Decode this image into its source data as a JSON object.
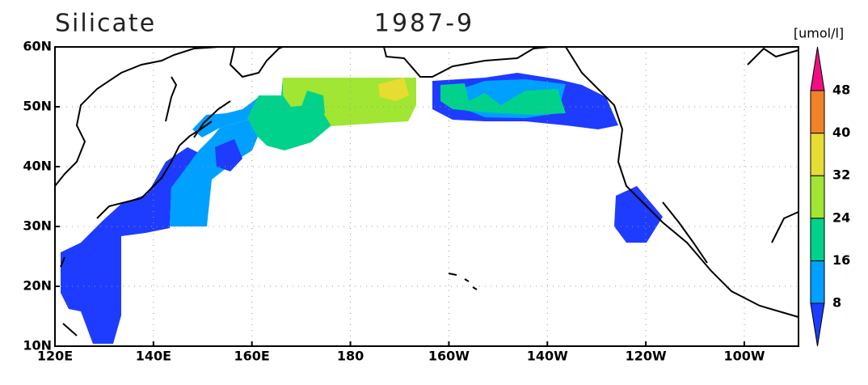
{
  "title": "Silicate",
  "date": "1987-9",
  "unit": "[umol/l]",
  "map": {
    "lonlim": [
      120,
      271
    ],
    "latlim": [
      10,
      60
    ],
    "lonticks": [
      {
        "value": 120,
        "label": "120E"
      },
      {
        "value": 140,
        "label": "140E"
      },
      {
        "value": 160,
        "label": "160E"
      },
      {
        "value": 180,
        "label": "180"
      },
      {
        "value": 200,
        "label": "160W"
      },
      {
        "value": 220,
        "label": "140W"
      },
      {
        "value": 240,
        "label": "120W"
      },
      {
        "value": 260,
        "label": "100W"
      }
    ],
    "latticks": [
      {
        "value": 10,
        "label": "10N"
      },
      {
        "value": 20,
        "label": "20N"
      },
      {
        "value": 30,
        "label": "30N"
      },
      {
        "value": 40,
        "label": "40N"
      },
      {
        "value": 50,
        "label": "50N"
      },
      {
        "value": 60,
        "label": "60N"
      }
    ],
    "grid": true
  },
  "colorbar": {
    "levels": [
      8,
      16,
      24,
      32,
      40,
      48
    ],
    "colors": [
      "#1e3cff",
      "#00a0ff",
      "#00d28c",
      "#a0e632",
      "#e6dc32",
      "#f08228",
      "#f00f82"
    ]
  }
}
